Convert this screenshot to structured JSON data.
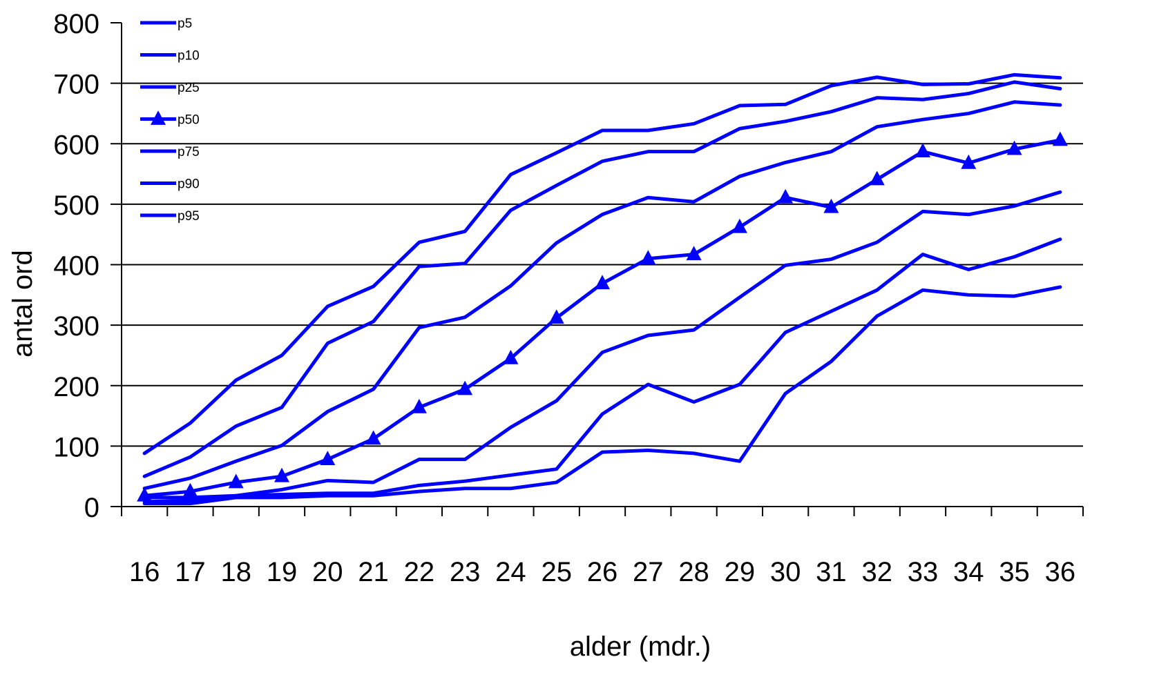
{
  "chart_data": {
    "type": "line",
    "title": "",
    "xlabel": "alder (mdr.)",
    "ylabel": "antal ord",
    "ylim": [
      0,
      800
    ],
    "yticks": [
      0,
      100,
      200,
      300,
      400,
      500,
      600,
      700,
      800
    ],
    "grid": "horizontal",
    "legend": "top-left",
    "line_color": "#0000FF",
    "categories": [
      "16",
      "17",
      "18",
      "19",
      "20",
      "21",
      "22",
      "23",
      "24",
      "25",
      "26",
      "27",
      "28",
      "29",
      "30",
      "31",
      "32",
      "33",
      "34",
      "35",
      "36"
    ],
    "series": [
      {
        "name": "p5",
        "marker": "none",
        "values": [
          5,
          5,
          15,
          15,
          18,
          18,
          25,
          30,
          30,
          40,
          90,
          93,
          88,
          75,
          187,
          240,
          315,
          358,
          350,
          348,
          363
        ]
      },
      {
        "name": "p10",
        "marker": "none",
        "values": [
          8,
          10,
          18,
          20,
          22,
          22,
          35,
          42,
          52,
          62,
          153,
          202,
          173,
          202,
          288,
          323,
          358,
          417,
          392,
          413,
          442
        ]
      },
      {
        "name": "p25",
        "marker": "none",
        "values": [
          15,
          15,
          18,
          28,
          43,
          40,
          78,
          78,
          131,
          175,
          255,
          283,
          292,
          346,
          399,
          409,
          437,
          488,
          483,
          497,
          520
        ]
      },
      {
        "name": "p50",
        "marker": "triangle",
        "values": [
          18,
          25,
          40,
          50,
          78,
          112,
          164,
          194,
          245,
          312,
          369,
          410,
          417,
          462,
          511,
          495,
          541,
          587,
          568,
          591,
          606
        ]
      },
      {
        "name": "p75",
        "marker": "none",
        "values": [
          30,
          47,
          75,
          101,
          157,
          194,
          296,
          313,
          365,
          436,
          483,
          511,
          504,
          546,
          569,
          587,
          628,
          640,
          650,
          669,
          664
        ]
      },
      {
        "name": "p90",
        "marker": "none",
        "values": [
          50,
          82,
          133,
          164,
          270,
          306,
          397,
          402,
          490,
          531,
          571,
          587,
          587,
          625,
          637,
          653,
          676,
          673,
          683,
          702,
          691
        ]
      },
      {
        "name": "p95",
        "marker": "none",
        "values": [
          88,
          138,
          209,
          250,
          331,
          364,
          437,
          455,
          549,
          585,
          622,
          622,
          633,
          663,
          665,
          696,
          710,
          698,
          699,
          714,
          709
        ]
      }
    ]
  }
}
